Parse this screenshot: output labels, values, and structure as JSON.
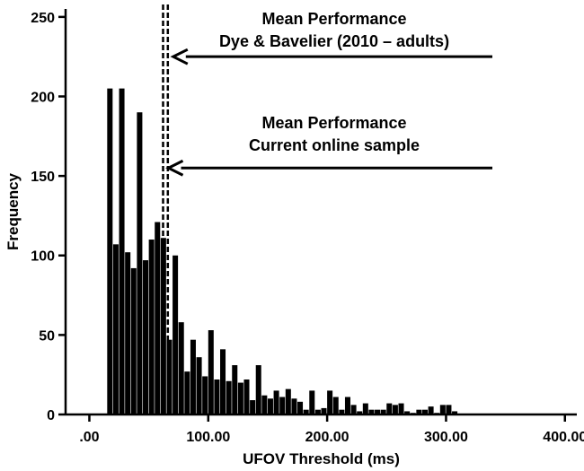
{
  "chart_data": {
    "type": "bar",
    "subtype": "histogram",
    "xlabel": "UFOV Threshold (ms)",
    "ylabel": "Frequency",
    "xlim": [
      -20,
      410
    ],
    "ylim": [
      0,
      255
    ],
    "x_ticks": [
      0,
      100,
      200,
      300,
      400
    ],
    "x_tick_labels": [
      ".00",
      "100.00",
      "200.00",
      "300.00",
      "400.00"
    ],
    "y_ticks": [
      0,
      50,
      100,
      150,
      200,
      250
    ],
    "y_tick_labels": [
      "0",
      "50",
      "100",
      "150",
      "200",
      "250"
    ],
    "bin_width": 5,
    "bars": [
      {
        "x": 15,
        "value": 205
      },
      {
        "x": 20,
        "value": 107
      },
      {
        "x": 25,
        "value": 205
      },
      {
        "x": 30,
        "value": 102
      },
      {
        "x": 35,
        "value": 92
      },
      {
        "x": 40,
        "value": 190
      },
      {
        "x": 45,
        "value": 97
      },
      {
        "x": 50,
        "value": 110
      },
      {
        "x": 55,
        "value": 121
      },
      {
        "x": 60,
        "value": 111
      },
      {
        "x": 65,
        "value": 47
      },
      {
        "x": 70,
        "value": 100
      },
      {
        "x": 75,
        "value": 58
      },
      {
        "x": 80,
        "value": 27
      },
      {
        "x": 85,
        "value": 47
      },
      {
        "x": 90,
        "value": 36
      },
      {
        "x": 95,
        "value": 24
      },
      {
        "x": 100,
        "value": 53
      },
      {
        "x": 105,
        "value": 22
      },
      {
        "x": 110,
        "value": 41
      },
      {
        "x": 115,
        "value": 21
      },
      {
        "x": 120,
        "value": 31
      },
      {
        "x": 125,
        "value": 20
      },
      {
        "x": 130,
        "value": 22
      },
      {
        "x": 135,
        "value": 9
      },
      {
        "x": 140,
        "value": 31
      },
      {
        "x": 145,
        "value": 12
      },
      {
        "x": 150,
        "value": 10
      },
      {
        "x": 155,
        "value": 15
      },
      {
        "x": 160,
        "value": 11
      },
      {
        "x": 165,
        "value": 16
      },
      {
        "x": 170,
        "value": 10
      },
      {
        "x": 175,
        "value": 8
      },
      {
        "x": 180,
        "value": 3
      },
      {
        "x": 185,
        "value": 15
      },
      {
        "x": 190,
        "value": 3
      },
      {
        "x": 195,
        "value": 4
      },
      {
        "x": 200,
        "value": 15
      },
      {
        "x": 205,
        "value": 11
      },
      {
        "x": 210,
        "value": 3
      },
      {
        "x": 215,
        "value": 11
      },
      {
        "x": 220,
        "value": 6
      },
      {
        "x": 225,
        "value": 2
      },
      {
        "x": 230,
        "value": 7
      },
      {
        "x": 235,
        "value": 3
      },
      {
        "x": 240,
        "value": 3
      },
      {
        "x": 245,
        "value": 3
      },
      {
        "x": 250,
        "value": 7
      },
      {
        "x": 255,
        "value": 6
      },
      {
        "x": 260,
        "value": 7
      },
      {
        "x": 265,
        "value": 2
      },
      {
        "x": 270,
        "value": 1
      },
      {
        "x": 275,
        "value": 3
      },
      {
        "x": 280,
        "value": 3
      },
      {
        "x": 285,
        "value": 5
      },
      {
        "x": 290,
        "value": 1
      },
      {
        "x": 295,
        "value": 6
      },
      {
        "x": 300,
        "value": 6
      },
      {
        "x": 305,
        "value": 2
      }
    ],
    "reference_lines": [
      {
        "x": 62,
        "style": "dashed"
      },
      {
        "x": 66,
        "style": "dashed"
      }
    ],
    "annotations": [
      {
        "lines": [
          "Mean Performance",
          "Dye & Bavelier (2010 – adults)"
        ],
        "arrow_tip_x": 66,
        "arrow_y": 225
      },
      {
        "lines": [
          "Mean Performance",
          "Current online sample"
        ],
        "arrow_tip_x": 62,
        "arrow_y": 155
      }
    ],
    "grid": false
  }
}
